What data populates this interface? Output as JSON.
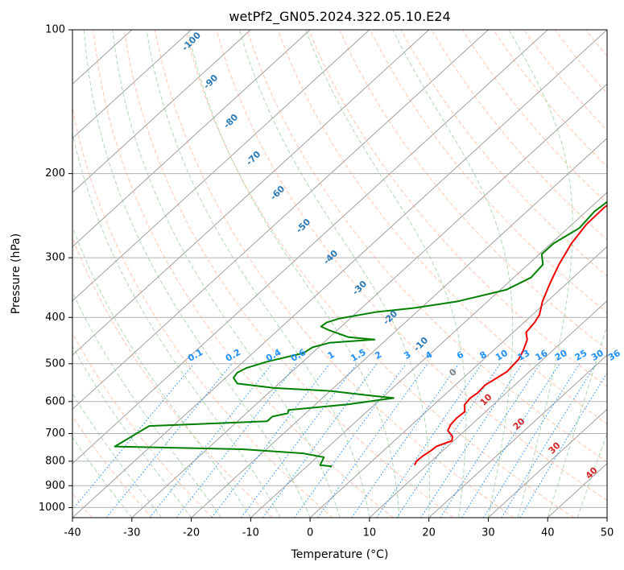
{
  "chart_data": {
    "type": "line",
    "title": "wetPf2_GN05.2024.322.05.10.E24",
    "xlabel": "Temperature (°C)",
    "ylabel": "Pressure (hPa)",
    "xlim": [
      -40,
      50
    ],
    "ylim": [
      1050,
      100
    ],
    "y_scale": "log",
    "x_ticks": [
      -40,
      -30,
      -20,
      -10,
      0,
      10,
      20,
      30,
      40,
      50
    ],
    "y_ticks": [
      100,
      200,
      300,
      400,
      500,
      600,
      700,
      800,
      900,
      1000
    ],
    "grid": true,
    "series": [
      {
        "role": "temperature",
        "color": "#ee0000",
        "pressure": [
          815,
          800,
          780,
          760,
          745,
          725,
          710,
          690,
          670,
          650,
          630,
          610,
          590,
          575,
          555,
          520,
          490,
          470,
          445,
          430,
          410,
          395,
          370,
          340,
          310,
          280,
          255,
          235,
          220,
          205,
          195,
          178,
          160,
          150,
          140,
          130,
          123,
          113,
          105,
          100
        ],
        "temperature": [
          7.9,
          7.5,
          7.6,
          8.0,
          8.1,
          9.7,
          9.0,
          7.1,
          6.5,
          6.3,
          6.5,
          5.2,
          4.9,
          5.2,
          5.0,
          6.2,
          5.9,
          5.1,
          3.7,
          2.2,
          1.8,
          1.2,
          -0.8,
          -2.8,
          -4.8,
          -6.6,
          -7.6,
          -7.7,
          -6.8,
          -3.6,
          -1.2,
          0.5,
          1.8,
          2.8,
          3.5,
          4.4,
          5.3,
          7.2,
          9.0,
          10.3
        ]
      },
      {
        "role": "dewpoint",
        "color": "#008000",
        "pressure": [
          820,
          815,
          785,
          770,
          755,
          745,
          675,
          660,
          645,
          635,
          625,
          608,
          590,
          582,
          570,
          562,
          550,
          535,
          522,
          510,
          495,
          475,
          462,
          452,
          445,
          440,
          425,
          418,
          410,
          402,
          390,
          382,
          370,
          350,
          330,
          310,
          295,
          280,
          260,
          240,
          222,
          210,
          200,
          191,
          180,
          167,
          160,
          152,
          147,
          138,
          129,
          121,
          113,
          105,
          100
        ],
        "temperature": [
          -5.8,
          -8.0,
          -8.8,
          -13.0,
          -24.0,
          -46.0,
          -44.0,
          -25.0,
          -25.0,
          -23.0,
          -23.5,
          -14.5,
          -8.0,
          -13.0,
          -20.0,
          -30.0,
          -37.0,
          -38.7,
          -39.0,
          -38.3,
          -36.0,
          -31.5,
          -31.0,
          -29.0,
          -22.0,
          -26.8,
          -31.5,
          -33.4,
          -33.2,
          -31.8,
          -27.0,
          -21.0,
          -15.0,
          -9.0,
          -7.1,
          -7.5,
          -9.6,
          -9.6,
          -8.1,
          -8.6,
          -8.0,
          -10.2,
          -11.6,
          -13.0,
          -14.3,
          -14.2,
          -14.6,
          -14.8,
          -14.3,
          -12.5,
          -10.5,
          -8.4,
          -7.4,
          -5.8,
          -4.9
        ]
      }
    ],
    "isotherm_labels": [
      "-100",
      "-90",
      "-80",
      "-70",
      "-60",
      "-50",
      "-40",
      "-30",
      "-20",
      "-10"
    ],
    "mixing_ratio_labels": [
      "0.1",
      "0.2",
      "0.4",
      "0.6",
      "1",
      "1.5",
      "2",
      "3",
      "4",
      "6",
      "8",
      "10",
      "13",
      "16",
      "20",
      "25",
      "30",
      "36"
    ],
    "moist_adiabat_labels": [
      "0",
      "10",
      "20",
      "30",
      "40"
    ],
    "colors": {
      "isotherm": "#2a78b5",
      "mixing_ratio": "#1e90ff",
      "moist_adiabat": "#d62728",
      "moist_zero": "#808080",
      "dry_adiabat": "#ffa07a",
      "moist_adiabat_line": "#8fc98f",
      "skew_isotherm": "#a0a0a0",
      "grid": "#b0b0b0"
    }
  }
}
